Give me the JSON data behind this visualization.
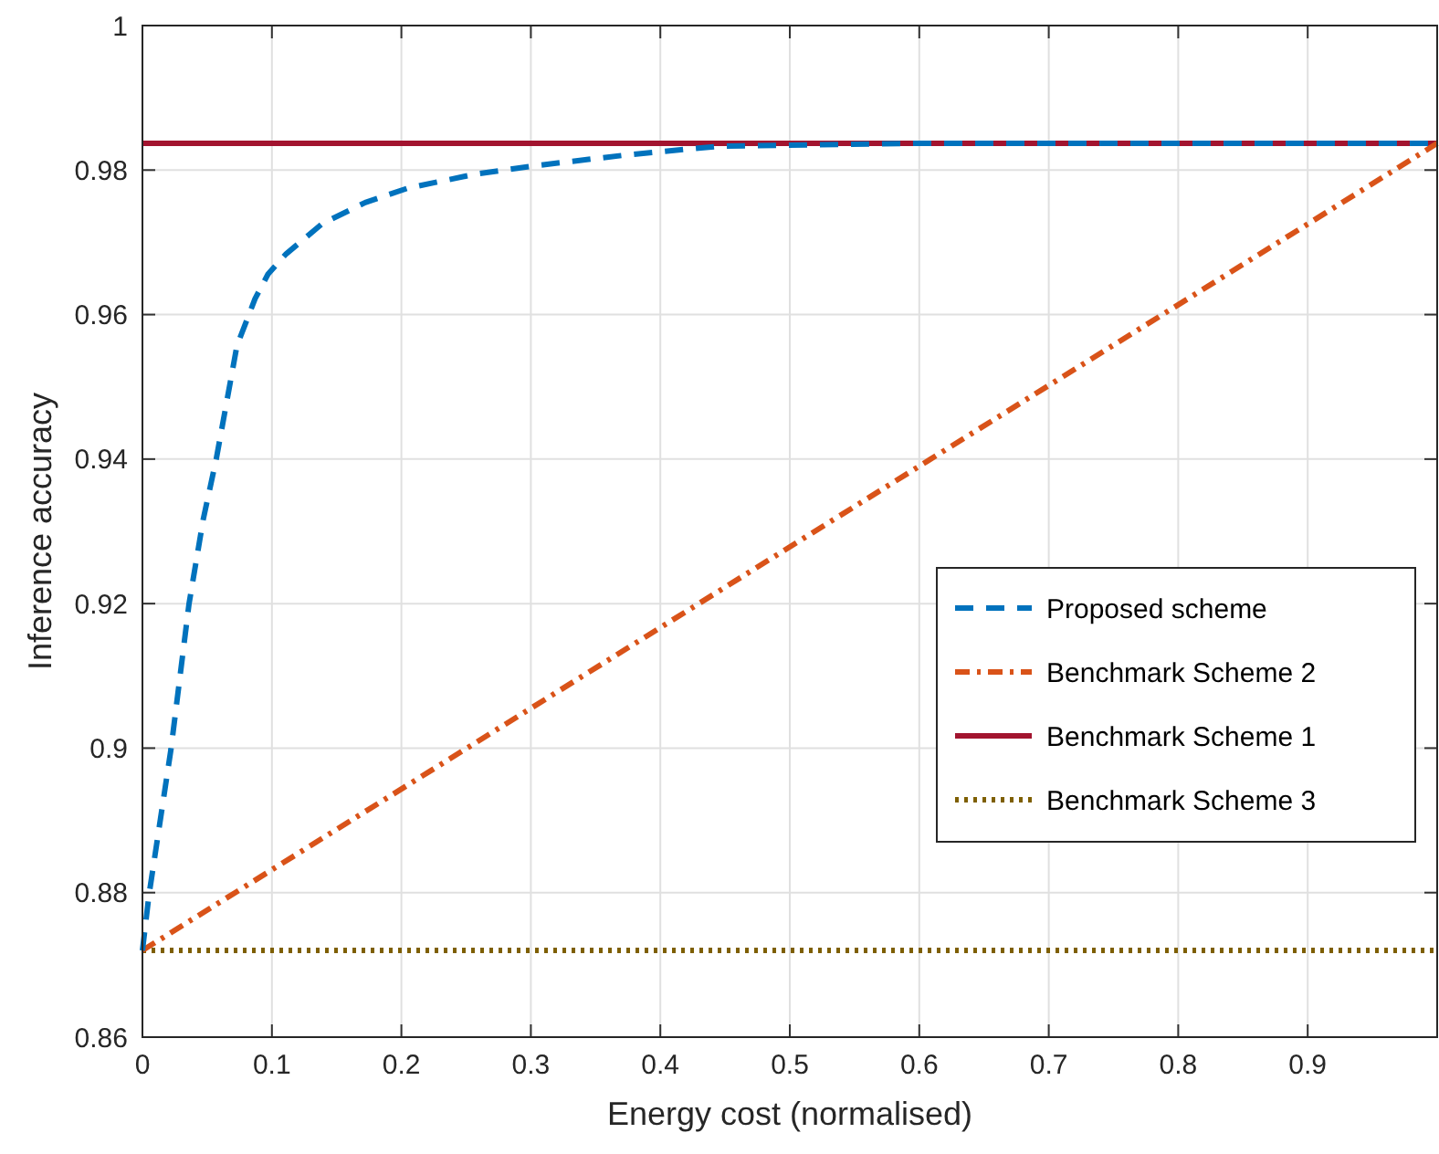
{
  "chart_data": {
    "type": "line",
    "xlabel": "Energy cost (normalised)",
    "ylabel": "Inference accuracy",
    "xlim": [
      0,
      1
    ],
    "ylim": [
      0.86,
      1
    ],
    "xticks": [
      0,
      0.1,
      0.2,
      0.3,
      0.4,
      0.5,
      0.6,
      0.7,
      0.8,
      0.9
    ],
    "yticks": [
      0.86,
      0.88,
      0.9,
      0.92,
      0.94,
      0.96,
      0.98,
      1
    ],
    "grid": true,
    "legend": "right",
    "marker": "none",
    "series": [
      {
        "name": "Proposed scheme",
        "color": "#0072bd",
        "line_style": "dashed",
        "x": [
          0,
          0.005,
          0.022,
          0.036,
          0.047,
          0.057,
          0.073,
          0.087,
          0.097,
          0.111,
          0.139,
          0.172,
          0.205,
          0.256,
          0.303,
          0.374,
          0.445,
          0.6,
          1
        ],
        "values": [
          0.872,
          0.8796,
          0.8998,
          0.92,
          0.9317,
          0.94,
          0.9557,
          0.9622,
          0.9656,
          0.9684,
          0.9726,
          0.9755,
          0.9775,
          0.9794,
          0.9806,
          0.9821,
          0.9833,
          0.9837,
          0.9837
        ]
      },
      {
        "name": "Benchmark Scheme 2",
        "color": "#d95319",
        "line_style": "dashdot",
        "x": [
          0,
          1
        ],
        "values": [
          0.872,
          0.9837
        ]
      },
      {
        "name": "Benchmark Scheme 1",
        "color": "#a2142f",
        "line_style": "solid",
        "x": [
          0,
          1
        ],
        "values": [
          0.9837,
          0.9837
        ]
      },
      {
        "name": "Benchmark Scheme 3",
        "color": "#7e5f00",
        "line_style": "dotted",
        "x": [
          0,
          1
        ],
        "values": [
          0.872,
          0.872
        ]
      }
    ]
  }
}
